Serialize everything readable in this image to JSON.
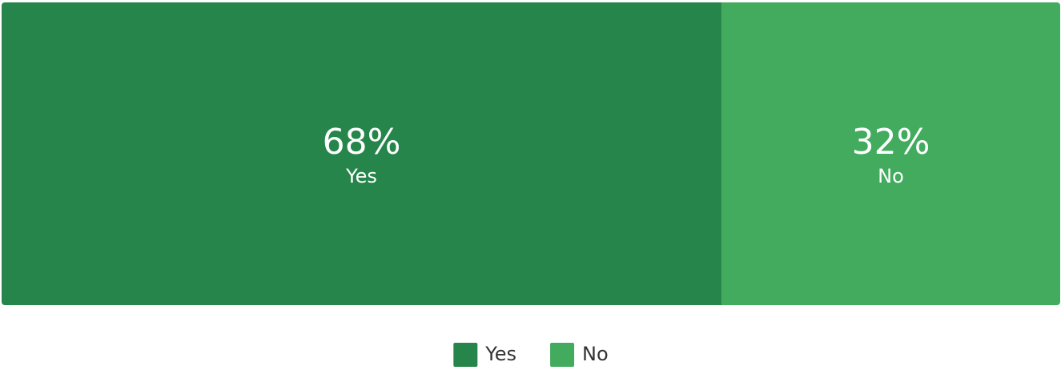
{
  "chart_data": {
    "type": "stacked_bar",
    "series": [
      {
        "name": "Yes",
        "color": "#26854a",
        "values": [
          68
        ],
        "value_labels": [
          "68%"
        ]
      },
      {
        "name": "No",
        "color": "#42ab5e",
        "values": [
          32
        ],
        "value_labels": [
          "32%"
        ]
      }
    ]
  }
}
